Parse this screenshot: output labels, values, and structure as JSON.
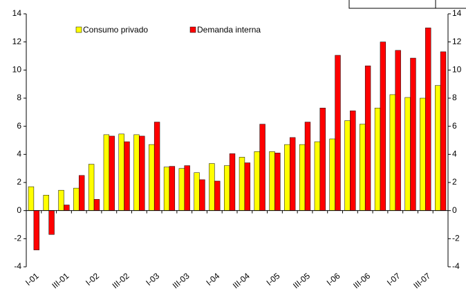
{
  "chart_data": {
    "type": "bar",
    "categories": [
      "I-01",
      null,
      "III-01",
      null,
      "I-02",
      null,
      "III-02",
      null,
      "I-03",
      null,
      "III-03",
      null,
      "I-04",
      null,
      "III-04",
      null,
      "I-05",
      null,
      "III-05",
      null,
      "I-06",
      null,
      "III-06",
      null,
      "I-07",
      null,
      "III-07",
      null
    ],
    "series": [
      {
        "name": "Consumo privado",
        "color": "#ffff00",
        "values": [
          1.7,
          1.1,
          1.45,
          1.6,
          3.3,
          5.4,
          5.45,
          5.4,
          4.7,
          3.1,
          3.0,
          2.7,
          3.35,
          3.2,
          3.8,
          4.2,
          4.2,
          4.7,
          4.7,
          4.9,
          5.1,
          6.4,
          6.15,
          7.3,
          8.25,
          8.05,
          8.0,
          8.9
        ]
      },
      {
        "name": "Demanda interna",
        "color": "#ff0000",
        "values": [
          -2.8,
          -1.7,
          0.4,
          2.5,
          0.8,
          5.3,
          4.9,
          5.3,
          6.3,
          3.15,
          3.2,
          2.2,
          2.1,
          4.05,
          3.4,
          6.15,
          4.1,
          5.2,
          6.3,
          7.3,
          11.05,
          7.1,
          10.3,
          12.0,
          11.4,
          10.85,
          13.0,
          11.3
        ]
      }
    ],
    "ylim": [
      -4,
      14
    ],
    "yticks": [
      -4,
      -2,
      0,
      2,
      4,
      6,
      8,
      10,
      12,
      14
    ],
    "y2lim": [
      -4,
      14
    ],
    "y2ticks": [
      -4,
      -2,
      0,
      2,
      4,
      6,
      8,
      10,
      12,
      14
    ],
    "legend": "top-left"
  }
}
